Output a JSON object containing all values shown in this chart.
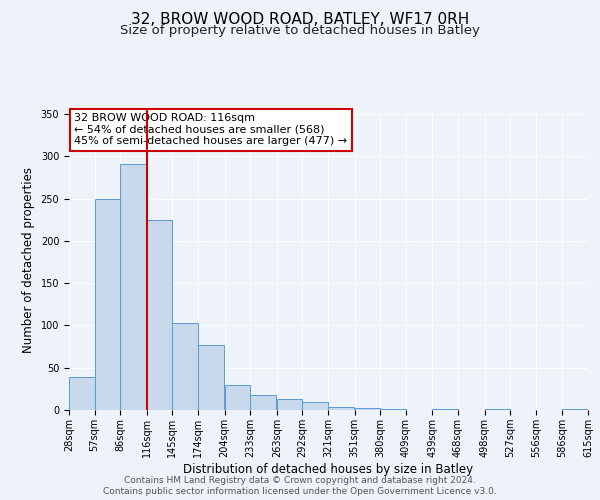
{
  "title1": "32, BROW WOOD ROAD, BATLEY, WF17 0RH",
  "title2": "Size of property relative to detached houses in Batley",
  "xlabel": "Distribution of detached houses by size in Batley",
  "ylabel": "Number of detached properties",
  "bar_left_edges": [
    28,
    57,
    86,
    116,
    145,
    174,
    204,
    233,
    263,
    292,
    321,
    351,
    380,
    409,
    439,
    468,
    498,
    527,
    556,
    586
  ],
  "bar_heights": [
    39,
    250,
    291,
    225,
    103,
    77,
    29,
    18,
    13,
    10,
    4,
    2,
    1,
    0,
    1,
    0,
    1,
    0,
    0,
    1
  ],
  "bin_width": 29,
  "bar_color": "#c9d9ec",
  "bar_edge_color": "#5b9bd5",
  "vline_x": 116,
  "vline_color": "#cc0000",
  "annotation_line1": "32 BROW WOOD ROAD: 116sqm",
  "annotation_line2": "← 54% of detached houses are smaller (568)",
  "annotation_line3": "45% of semi-detached houses are larger (477) →",
  "annotation_box_edge_color": "#cc0000",
  "ylim": [
    0,
    355
  ],
  "yticks": [
    0,
    50,
    100,
    150,
    200,
    250,
    300,
    350
  ],
  "xtick_labels": [
    "28sqm",
    "57sqm",
    "86sqm",
    "116sqm",
    "145sqm",
    "174sqm",
    "204sqm",
    "233sqm",
    "263sqm",
    "292sqm",
    "321sqm",
    "351sqm",
    "380sqm",
    "409sqm",
    "439sqm",
    "468sqm",
    "498sqm",
    "527sqm",
    "556sqm",
    "586sqm",
    "615sqm"
  ],
  "footnote1": "Contains HM Land Registry data © Crown copyright and database right 2024.",
  "footnote2": "Contains public sector information licensed under the Open Government Licence v3.0.",
  "background_color": "#eef2f9",
  "plot_bg_color": "#eef2f9",
  "grid_color": "#ffffff",
  "title1_fontsize": 11,
  "title2_fontsize": 9.5,
  "axis_label_fontsize": 8.5,
  "tick_fontsize": 7,
  "annotation_fontsize": 8,
  "footnote_fontsize": 6.5
}
